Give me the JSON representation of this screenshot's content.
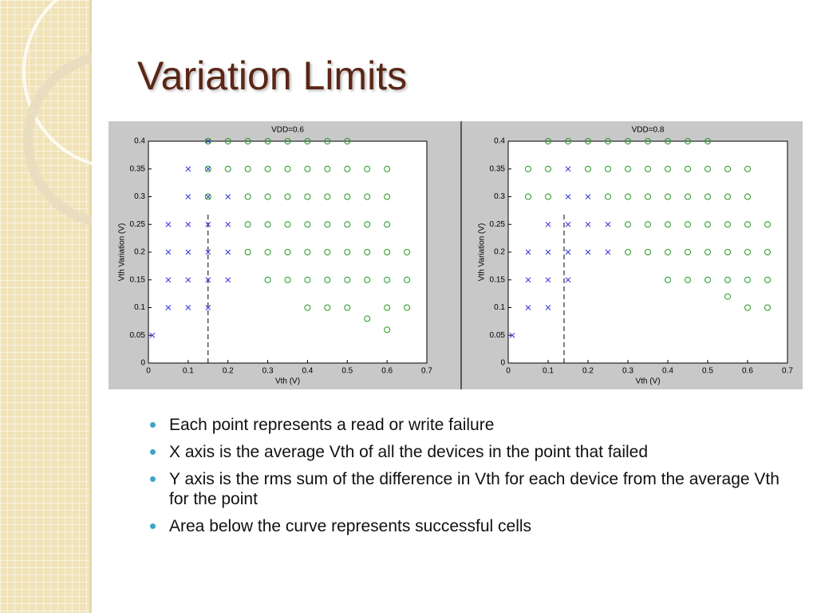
{
  "title": "Variation Limits",
  "bullets": [
    "Each point represents a read or write failure",
    "X axis is the average Vth of all the devices in the point that failed",
    "Y axis is the rms sum of the difference in Vth for each device from the average Vth for the point",
    "Area below the curve represents successful cells"
  ],
  "chart_data": [
    {
      "type": "scatter",
      "title": "VDD=0.6",
      "x_label": "Vth (V)",
      "y_label": "Vth Variation (V)",
      "xlim": [
        0,
        0.7
      ],
      "xticks": [
        0,
        0.1,
        0.2,
        0.3,
        0.4,
        0.5,
        0.6,
        0.7
      ],
      "ylim": [
        0,
        0.4
      ],
      "yticks": [
        0,
        0.05,
        0.1,
        0.15,
        0.2,
        0.25,
        0.3,
        0.35,
        0.4
      ],
      "vline": 0.15,
      "series": [
        {
          "color": "#3333dd",
          "marker": "x",
          "x": [
            0.01,
            0.05,
            0.05,
            0.05,
            0.05,
            0.1,
            0.1,
            0.1,
            0.1,
            0.1,
            0.1,
            0.15,
            0.15,
            0.15,
            0.15,
            0.15,
            0.15,
            0.15,
            0.2,
            0.2,
            0.2,
            0.2
          ],
          "values": [
            0.05,
            0.1,
            0.15,
            0.2,
            0.25,
            0.1,
            0.15,
            0.2,
            0.25,
            0.3,
            0.35,
            0.1,
            0.15,
            0.2,
            0.25,
            0.3,
            0.35,
            0.4,
            0.15,
            0.2,
            0.25,
            0.3
          ]
        },
        {
          "color": "#229922",
          "marker": "o",
          "x": [
            0.15,
            0.15,
            0.15,
            0.2,
            0.2,
            0.25,
            0.25,
            0.25,
            0.25,
            0.25,
            0.3,
            0.3,
            0.3,
            0.3,
            0.3,
            0.3,
            0.35,
            0.35,
            0.35,
            0.35,
            0.35,
            0.35,
            0.4,
            0.4,
            0.4,
            0.4,
            0.4,
            0.4,
            0.4,
            0.45,
            0.45,
            0.45,
            0.45,
            0.45,
            0.45,
            0.45,
            0.5,
            0.5,
            0.5,
            0.5,
            0.5,
            0.5,
            0.5,
            0.55,
            0.55,
            0.55,
            0.55,
            0.55,
            0.55,
            0.6,
            0.6,
            0.6,
            0.6,
            0.6,
            0.6,
            0.6,
            0.65,
            0.65,
            0.65
          ],
          "values": [
            0.3,
            0.35,
            0.4,
            0.35,
            0.4,
            0.2,
            0.25,
            0.3,
            0.35,
            0.4,
            0.15,
            0.2,
            0.25,
            0.3,
            0.35,
            0.4,
            0.15,
            0.2,
            0.25,
            0.3,
            0.35,
            0.4,
            0.1,
            0.15,
            0.2,
            0.25,
            0.3,
            0.35,
            0.4,
            0.1,
            0.15,
            0.2,
            0.25,
            0.3,
            0.35,
            0.4,
            0.1,
            0.15,
            0.2,
            0.25,
            0.3,
            0.35,
            0.4,
            0.08,
            0.15,
            0.2,
            0.25,
            0.3,
            0.35,
            0.06,
            0.1,
            0.15,
            0.2,
            0.25,
            0.3,
            0.35,
            0.1,
            0.15,
            0.2
          ]
        }
      ]
    },
    {
      "type": "scatter",
      "title": "VDD=0.8",
      "x_label": "Vth (V)",
      "y_label": "Vth Variation (V)",
      "xlim": [
        0,
        0.7
      ],
      "xticks": [
        0,
        0.1,
        0.2,
        0.3,
        0.4,
        0.5,
        0.6,
        0.7
      ],
      "ylim": [
        0,
        0.4
      ],
      "yticks": [
        0,
        0.05,
        0.1,
        0.15,
        0.2,
        0.25,
        0.3,
        0.35,
        0.4
      ],
      "vline": 0.14,
      "series": [
        {
          "color": "#3333dd",
          "marker": "x",
          "x": [
            0.01,
            0.05,
            0.05,
            0.05,
            0.1,
            0.1,
            0.1,
            0.1,
            0.15,
            0.15,
            0.15,
            0.15,
            0.15,
            0.2,
            0.2,
            0.2,
            0.25,
            0.25
          ],
          "values": [
            0.05,
            0.1,
            0.15,
            0.2,
            0.1,
            0.15,
            0.2,
            0.25,
            0.15,
            0.2,
            0.25,
            0.3,
            0.35,
            0.2,
            0.25,
            0.3,
            0.2,
            0.25
          ]
        },
        {
          "color": "#229922",
          "marker": "o",
          "x": [
            0.05,
            0.05,
            0.1,
            0.1,
            0.1,
            0.15,
            0.2,
            0.2,
            0.25,
            0.25,
            0.25,
            0.3,
            0.3,
            0.3,
            0.3,
            0.3,
            0.35,
            0.35,
            0.35,
            0.35,
            0.35,
            0.4,
            0.4,
            0.4,
            0.4,
            0.4,
            0.4,
            0.45,
            0.45,
            0.45,
            0.45,
            0.45,
            0.45,
            0.5,
            0.5,
            0.5,
            0.5,
            0.5,
            0.5,
            0.55,
            0.55,
            0.55,
            0.55,
            0.55,
            0.55,
            0.6,
            0.6,
            0.6,
            0.6,
            0.6,
            0.6,
            0.65,
            0.65,
            0.65,
            0.65
          ],
          "values": [
            0.3,
            0.35,
            0.3,
            0.35,
            0.4,
            0.4,
            0.35,
            0.4,
            0.3,
            0.35,
            0.4,
            0.2,
            0.25,
            0.3,
            0.35,
            0.4,
            0.2,
            0.25,
            0.3,
            0.35,
            0.4,
            0.15,
            0.2,
            0.25,
            0.3,
            0.35,
            0.4,
            0.15,
            0.2,
            0.25,
            0.3,
            0.35,
            0.4,
            0.15,
            0.2,
            0.25,
            0.3,
            0.35,
            0.4,
            0.12,
            0.15,
            0.2,
            0.25,
            0.3,
            0.35,
            0.1,
            0.15,
            0.2,
            0.25,
            0.3,
            0.35,
            0.1,
            0.15,
            0.2,
            0.25
          ]
        }
      ]
    }
  ]
}
